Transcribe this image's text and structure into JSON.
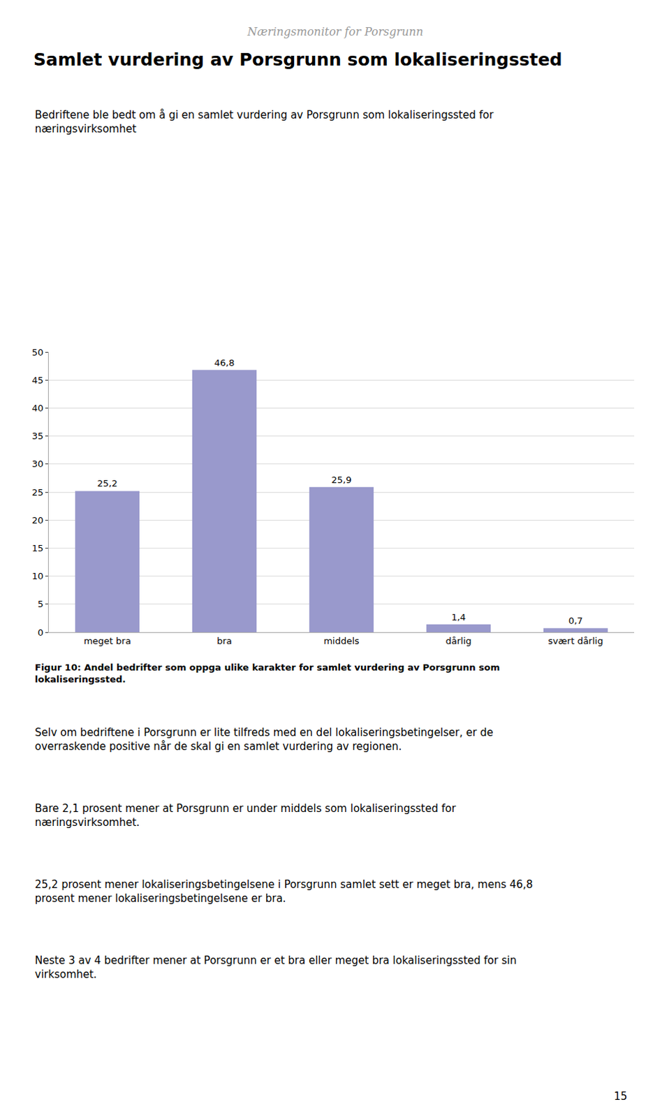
{
  "chart_data": {
    "type": "bar",
    "header": "Næringsmonitor for Porsgrunn",
    "title": "Samlet vurdering av Porsgrunn som lokaliseringssted",
    "subtitle": "Bedriftene ble bedt om å gi en samlet vurdering av Porsgrunn som lokaliseringssted for\nnæringsvirksomhet",
    "categories": [
      "meget bra",
      "bra",
      "middels",
      "dårlig",
      "svært dårlig"
    ],
    "values": [
      25.2,
      46.8,
      25.9,
      1.4,
      0.7
    ],
    "value_labels": [
      "25,2",
      "46,8",
      "25,9",
      "1,4",
      "0,7"
    ],
    "data_labels": true,
    "color": "#9999CC",
    "ylim": [
      0,
      50
    ],
    "yticks": [
      0,
      5,
      10,
      15,
      20,
      25,
      30,
      35,
      40,
      45,
      50
    ],
    "grid": true,
    "caption": "Figur 10: Andel bedrifter som oppga ulike karakter for samlet vurdering av Porsgrunn som\nlokaliseringssted.",
    "annotations": [
      "Selv om bedriftene i Porsgrunn er lite tilfreds med en del lokaliseringsbetingelser, er de\noverraskende positive når de skal gi en samlet vurdering av regionen.",
      "Bare 2,1 prosent mener at Porsgrunn er under middels som lokaliseringssted for\nnæringsvirksomhet.",
      "25,2 prosent mener lokaliseringsbetingelsene i Porsgrunn samlet sett er meget bra, mens 46,8\nprosent mener lokaliseringsbetingelsene er bra.",
      "Neste 3 av 4 bedrifter mener at Porsgrunn er et bra eller meget bra lokaliseringssted for sin\nvirksomhet."
    ],
    "page_number": "15"
  }
}
